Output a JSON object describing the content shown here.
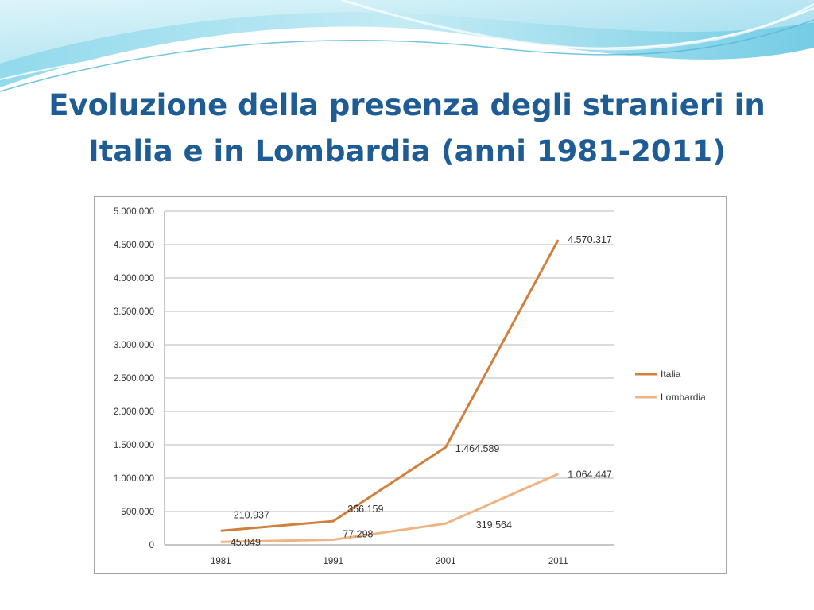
{
  "slide": {
    "title_line1": "Evoluzione della presenza degli stranieri in",
    "title_line2": "Italia e in Lombardia (anni 1981-2011)"
  },
  "colors": {
    "title": "#1f5c96",
    "italia": "#d27f3c",
    "lombardia": "#f2b383",
    "grid": "#b7b7b7"
  },
  "chart_data": {
    "type": "line",
    "title": "",
    "xlabel": "",
    "ylabel": "",
    "x": [
      "1981",
      "1991",
      "2001",
      "2011"
    ],
    "ylim": [
      0,
      5000000
    ],
    "yticks": [
      "0",
      "500.000",
      "1.000.000",
      "1.500.000",
      "2.000.000",
      "2.500.000",
      "3.000.000",
      "3.500.000",
      "4.000.000",
      "4.500.000",
      "5.000.000"
    ],
    "grid": true,
    "legend_position": "right",
    "series": [
      {
        "name": "Italia",
        "values": [
          210937,
          356159,
          1464589,
          4570317
        ],
        "labels": [
          "210.937",
          "356.159",
          "1.464.589",
          "4.570.317"
        ]
      },
      {
        "name": "Lombardia",
        "values": [
          45049,
          77298,
          319564,
          1064447
        ],
        "labels": [
          "45.049",
          "77.298",
          "319.564",
          "1.064.447"
        ]
      }
    ]
  }
}
